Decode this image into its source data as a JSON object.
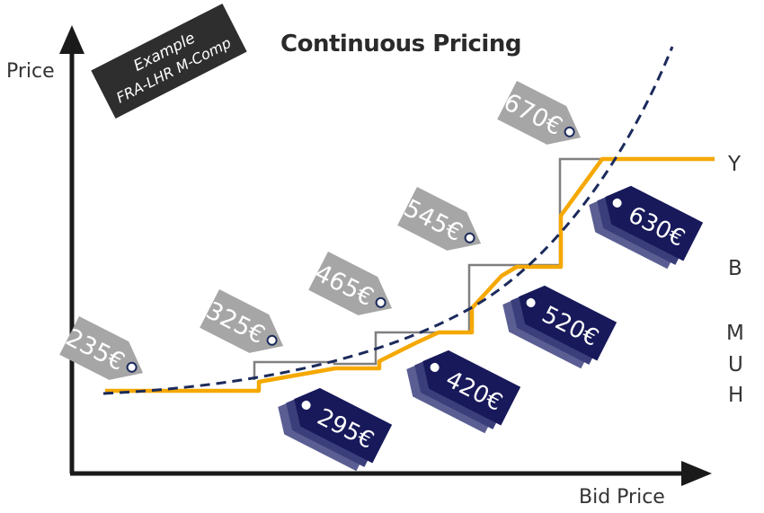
{
  "title": "Continuous Pricing",
  "example_badge": {
    "line1": "Example",
    "line2": "FRA-LHR M-Comp"
  },
  "axes": {
    "y_label": "Price",
    "x_label": "Bid Price"
  },
  "fare_classes": [
    "Y",
    "B",
    "M",
    "U",
    "H"
  ],
  "grey_tags": [
    "235€",
    "325€",
    "465€",
    "545€",
    "670€"
  ],
  "navy_tags": [
    "295€",
    "420€",
    "520€",
    "630€"
  ],
  "colors": {
    "axis": "#1a1a1a",
    "title": "#2a2a2a",
    "grey_tag": "#a6a6a6",
    "navy_tag": "#17195a",
    "step_orange": "#f5a800",
    "step_grey": "#7f7f7f",
    "curve": "#1b2a5c",
    "badge": "#2e2e2e"
  }
}
